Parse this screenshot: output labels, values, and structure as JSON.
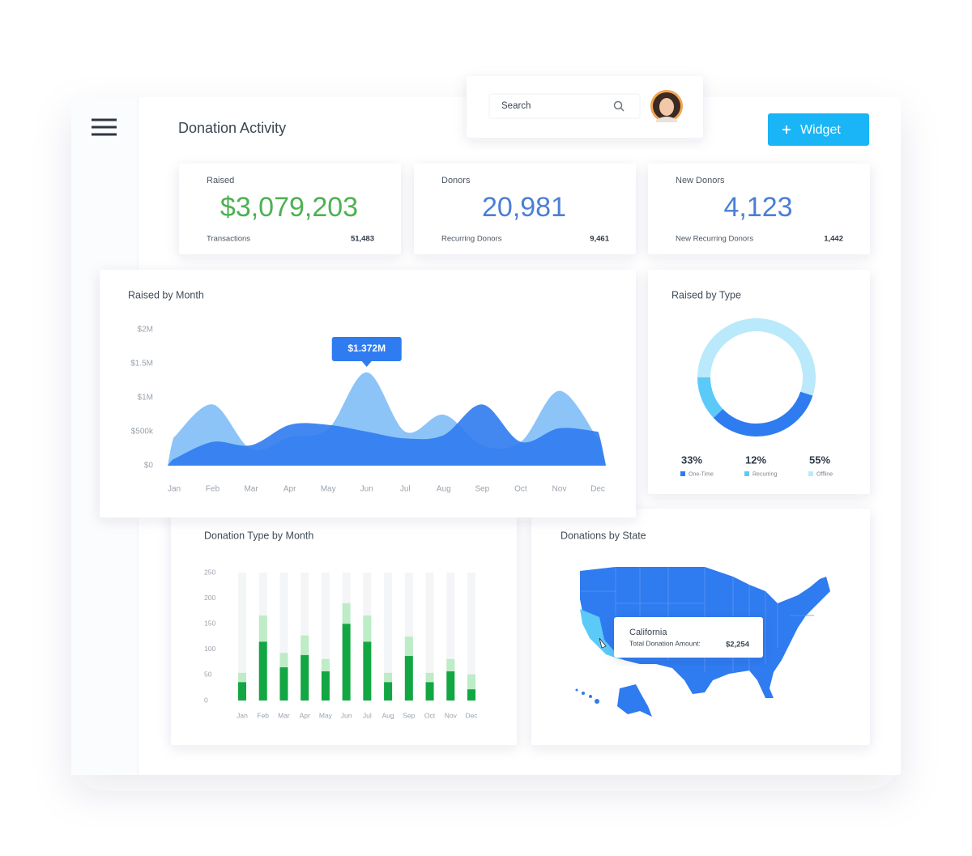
{
  "header": {
    "title": "Donation Activity",
    "search_placeholder": "Search",
    "button": "Widget"
  },
  "stats": [
    {
      "label": "Raised",
      "value": "$3,079,203",
      "sub_label": "Transactions",
      "sub_value": "51,483"
    },
    {
      "label": "Donors",
      "value": "20,981",
      "sub_label": "Recurring Donors",
      "sub_value": "9,461"
    },
    {
      "label": "New Donors",
      "value": "4,123",
      "sub_label": "New Recurring Donors",
      "sub_value": "1,442"
    }
  ],
  "chart_data": [
    {
      "type": "area",
      "title": "Raised by Month",
      "annotation": "$1.372M",
      "categories": [
        "Jan",
        "Feb",
        "Mar",
        "Apr",
        "May",
        "Jun",
        "Jul",
        "Aug",
        "Sep",
        "Oct",
        "Nov",
        "Dec"
      ],
      "series": [
        {
          "color": "#86c1f8",
          "values": [
            420000,
            900000,
            240000,
            420000,
            540000,
            1372000,
            500000,
            750000,
            300000,
            350000,
            1100000,
            400000
          ]
        },
        {
          "color": "#2f7bf0",
          "values": [
            100000,
            350000,
            300000,
            600000,
            600000,
            500000,
            400000,
            450000,
            900000,
            350000,
            550000,
            500000
          ]
        }
      ],
      "ylim": [
        0,
        2000000
      ],
      "yticks": [
        {
          "value": 0,
          "label": "$0"
        },
        {
          "value": 500000,
          "label": "$500k"
        },
        {
          "value": 1000000,
          "label": "$1M"
        },
        {
          "value": 1500000,
          "label": "$1.5M"
        },
        {
          "value": 2000000,
          "label": "$2M"
        }
      ]
    },
    {
      "type": "donut",
      "title": "Raised by Type",
      "categories": [
        "One-Time",
        "Recurring",
        "Offline"
      ],
      "values": [
        33,
        12,
        55
      ],
      "value_labels": [
        "33%",
        "12%",
        "55%"
      ],
      "colors": [
        "#2f7bf0",
        "#5ccaf8",
        "#b9e9fb"
      ]
    },
    {
      "type": "stacked-bar",
      "title": "Donation Type by Month",
      "categories": [
        "Jan",
        "Feb",
        "Mar",
        "Apr",
        "May",
        "Jun",
        "Jul",
        "Aug",
        "Sep",
        "Oct",
        "Nov",
        "Dec"
      ],
      "series": [
        {
          "color": "#12a743",
          "values": [
            36,
            115,
            65,
            89,
            57,
            150,
            115,
            36,
            87,
            36,
            57,
            22
          ]
        },
        {
          "color": "#bdecc6",
          "values": [
            18,
            51,
            28,
            38,
            24,
            40,
            51,
            18,
            38,
            18,
            24,
            29
          ]
        }
      ],
      "ylim": [
        0,
        250
      ],
      "yticks": [
        0,
        50,
        100,
        150,
        200,
        250
      ]
    }
  ],
  "map": {
    "title": "Donations by State",
    "tooltip": {
      "state": "California",
      "label": "Total Donation Amount:",
      "value": "$2,254"
    }
  }
}
